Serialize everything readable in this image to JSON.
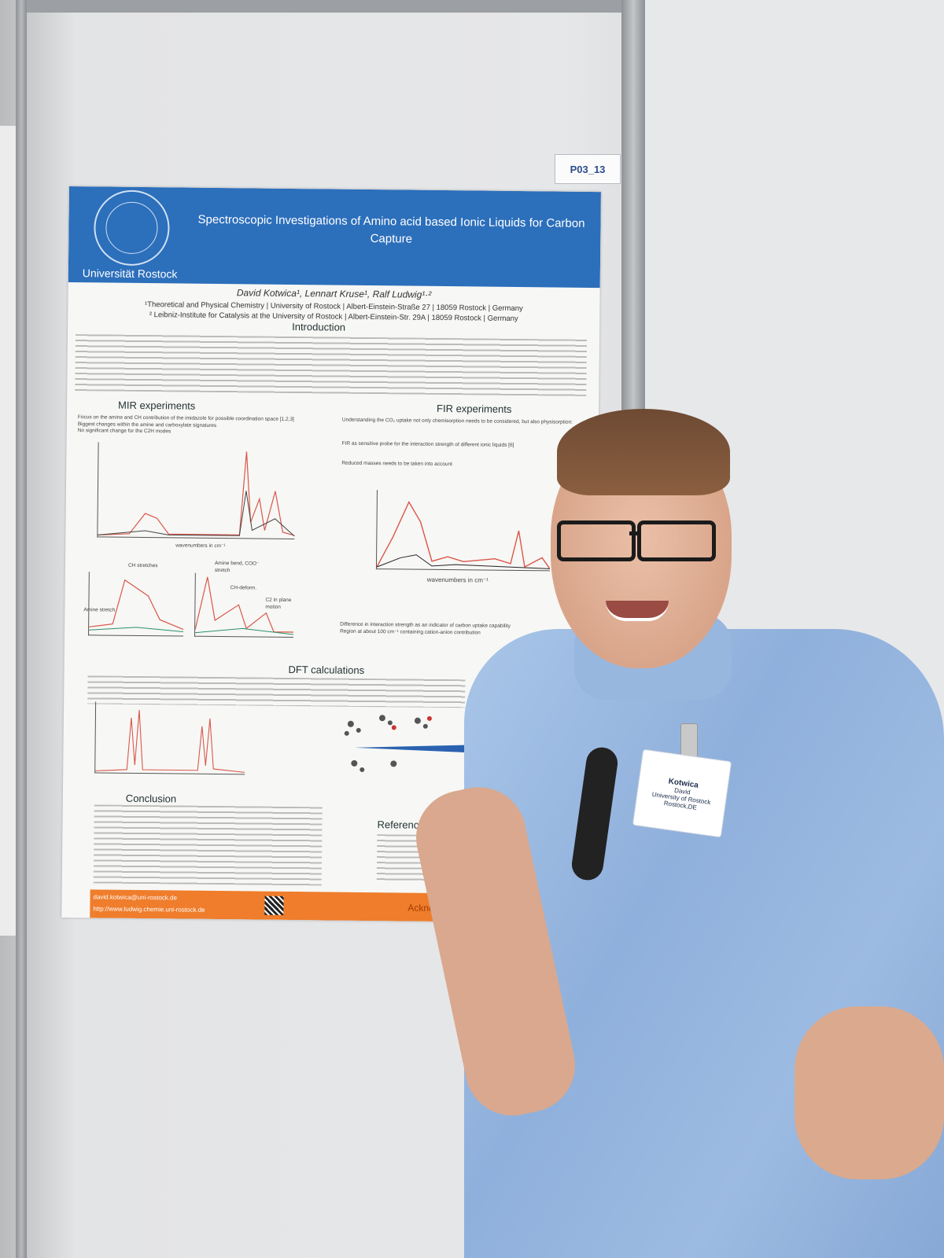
{
  "board_tag": "P03_13",
  "poster": {
    "university": "Universität Rostock",
    "title": "Spectroscopic Investigations of Amino acid based Ionic Liquids for Carbon Capture",
    "authors": "David Kotwica¹, Lennart Kruse¹, Ralf Ludwig¹·²",
    "affiliation_1": "¹Theoretical and Physical Chemistry | University of Rostock | Albert-Einstein-Straße 27 | 18059 Rostock | Germany",
    "affiliation_2": "² Leibniz-Institute for Catalysis at the University of Rostock | Albert-Einstein-Str. 29A | 18059 Rostock | Germany",
    "sections": {
      "introduction": "Introduction",
      "mir": "MIR experiments",
      "fir": "FIR experiments",
      "dft": "DFT calculations",
      "conclusion": "Conclusion",
      "references": "References"
    },
    "mir_bullets": [
      "Focus on the amine and CH contribution of the imidazole for possible coordination space [1,2,3]",
      "Biggest changes within the amine and carboxylate signatures",
      "No significant change for the C2H modes"
    ],
    "fir_intro": "Understanding the CO₂ uptake not only chemisorption needs to be considered, but also physisorption:",
    "fir_bullets": [
      "FIR as sensitive probe for the interaction strength of different ionic liquids [6]",
      "Reduced masses needs to be taken into account"
    ],
    "fir_axis": "wavenumbers in cm⁻¹",
    "mir_axis": "wavenumbers in cm⁻¹",
    "mir_labels": [
      "CH stretches",
      "Amine bend, COO⁻ stretch",
      "CH-deform.",
      "C2 in plane motion",
      "Amine stretch"
    ],
    "fir_results": [
      "Difference in interaction strength as an indicator of carbon uptake capability",
      "Region at about 100 cm⁻¹ containing cation-anion contribution"
    ],
    "footer_email": "david.kotwica@uni-rostock.de",
    "footer_url": "http://www.ludwig.chemie.uni-rostock.de",
    "acknowledgements": "Acknowledgements"
  },
  "badge": {
    "surname": "Kotwica",
    "first_name": "David",
    "organization": "University of Rostock",
    "city": "Rostock,DE"
  }
}
